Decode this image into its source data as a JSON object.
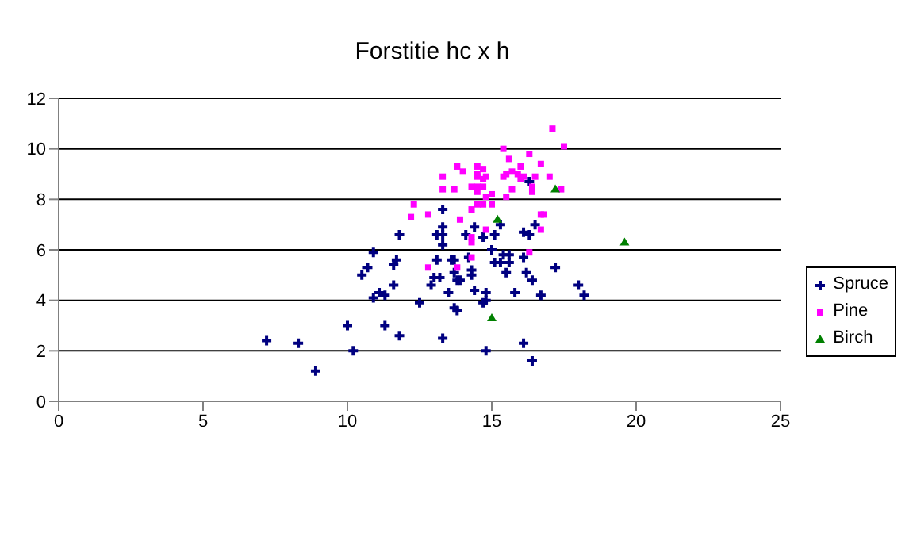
{
  "chart_data": {
    "type": "scatter",
    "title": "Forstitie hc x h",
    "xlim": [
      0,
      25
    ],
    "xticks": [
      0,
      5,
      10,
      15,
      20,
      25
    ],
    "ylim": [
      0,
      12
    ],
    "yticks": [
      0,
      2,
      4,
      6,
      8,
      10,
      12
    ],
    "grid": "y",
    "legend": "right",
    "series": [
      {
        "name": "Spruce",
        "color": "#000080",
        "marker": "cross",
        "x": [
          7.2,
          8.3,
          8.9,
          10.0,
          10.2,
          11.3,
          11.8,
          10.9,
          11.1,
          11.3,
          11.6,
          10.5,
          10.7,
          11.6,
          11.7,
          10.9,
          11.8,
          16.3,
          13.3,
          13.3,
          14.4,
          15.3,
          16.5,
          16.1,
          13.1,
          13.3,
          14.1,
          15.1,
          16.3,
          14.7,
          13.3,
          15.0,
          15.4,
          15.6,
          16.1,
          13.1,
          13.6,
          13.7,
          14.2,
          15.1,
          15.3,
          15.6,
          17.2,
          13.7,
          14.3,
          14.3,
          15.5,
          16.2,
          13.0,
          13.2,
          13.8,
          13.9,
          16.4,
          12.9,
          18.0,
          13.5,
          14.4,
          14.8,
          15.8,
          16.7,
          18.2,
          12.5,
          13.7,
          13.8,
          14.7,
          14.8,
          13.3,
          16.1,
          14.8,
          16.4
        ],
        "values": [
          2.4,
          2.3,
          1.2,
          3.0,
          2.0,
          3.0,
          2.6,
          4.1,
          4.3,
          4.2,
          4.6,
          5.0,
          5.3,
          5.4,
          5.6,
          5.9,
          6.6,
          8.7,
          7.6,
          6.9,
          6.9,
          7.0,
          7.0,
          6.7,
          6.6,
          6.6,
          6.6,
          6.6,
          6.6,
          6.5,
          6.2,
          6.0,
          5.8,
          5.8,
          5.7,
          5.6,
          5.6,
          5.6,
          5.7,
          5.5,
          5.5,
          5.5,
          5.3,
          5.1,
          5.2,
          5.0,
          5.1,
          5.1,
          4.9,
          4.9,
          4.8,
          4.8,
          4.8,
          4.6,
          4.6,
          4.3,
          4.4,
          4.3,
          4.3,
          4.2,
          4.2,
          3.9,
          3.7,
          3.6,
          3.9,
          4.0,
          2.5,
          2.3,
          2.0,
          1.6
        ]
      },
      {
        "name": "Pine",
        "color": "#ff00ff",
        "marker": "square",
        "x": [
          12.2,
          17.1,
          17.5,
          15.4,
          16.3,
          15.6,
          16.7,
          13.8,
          14.5,
          14.7,
          16.0,
          14.0,
          15.7,
          14.5,
          15.5,
          15.9,
          14.8,
          14.5,
          15.4,
          16.1,
          16.5,
          17.0,
          13.3,
          14.7,
          16.0,
          14.3,
          14.5,
          13.7,
          14.7,
          16.4,
          17.4,
          13.3,
          14.5,
          15.7,
          16.4,
          15.0,
          14.8,
          15.5,
          12.3,
          14.5,
          14.7,
          15.0,
          12.8,
          14.3,
          13.9,
          16.7,
          16.8,
          16.7,
          14.8,
          14.3,
          14.3,
          16.3,
          14.3,
          12.8,
          13.8
        ],
        "values": [
          7.3,
          10.8,
          10.1,
          10.0,
          9.8,
          9.6,
          9.4,
          9.3,
          9.3,
          9.2,
          9.3,
          9.1,
          9.1,
          9.0,
          9.0,
          9.0,
          8.9,
          8.9,
          8.9,
          8.9,
          8.9,
          8.9,
          8.9,
          8.8,
          8.8,
          8.5,
          8.5,
          8.4,
          8.5,
          8.5,
          8.4,
          8.4,
          8.3,
          8.4,
          8.3,
          8.2,
          8.1,
          8.1,
          7.8,
          7.8,
          7.8,
          7.8,
          7.4,
          7.6,
          7.2,
          7.4,
          7.4,
          6.8,
          6.8,
          6.5,
          6.3,
          5.9,
          5.7,
          5.3,
          5.3
        ]
      },
      {
        "name": "Birch",
        "color": "#008000",
        "marker": "triangle",
        "x": [
          17.2,
          15.2,
          15.0,
          19.6
        ],
        "values": [
          8.4,
          7.2,
          3.3,
          6.3
        ]
      }
    ]
  }
}
